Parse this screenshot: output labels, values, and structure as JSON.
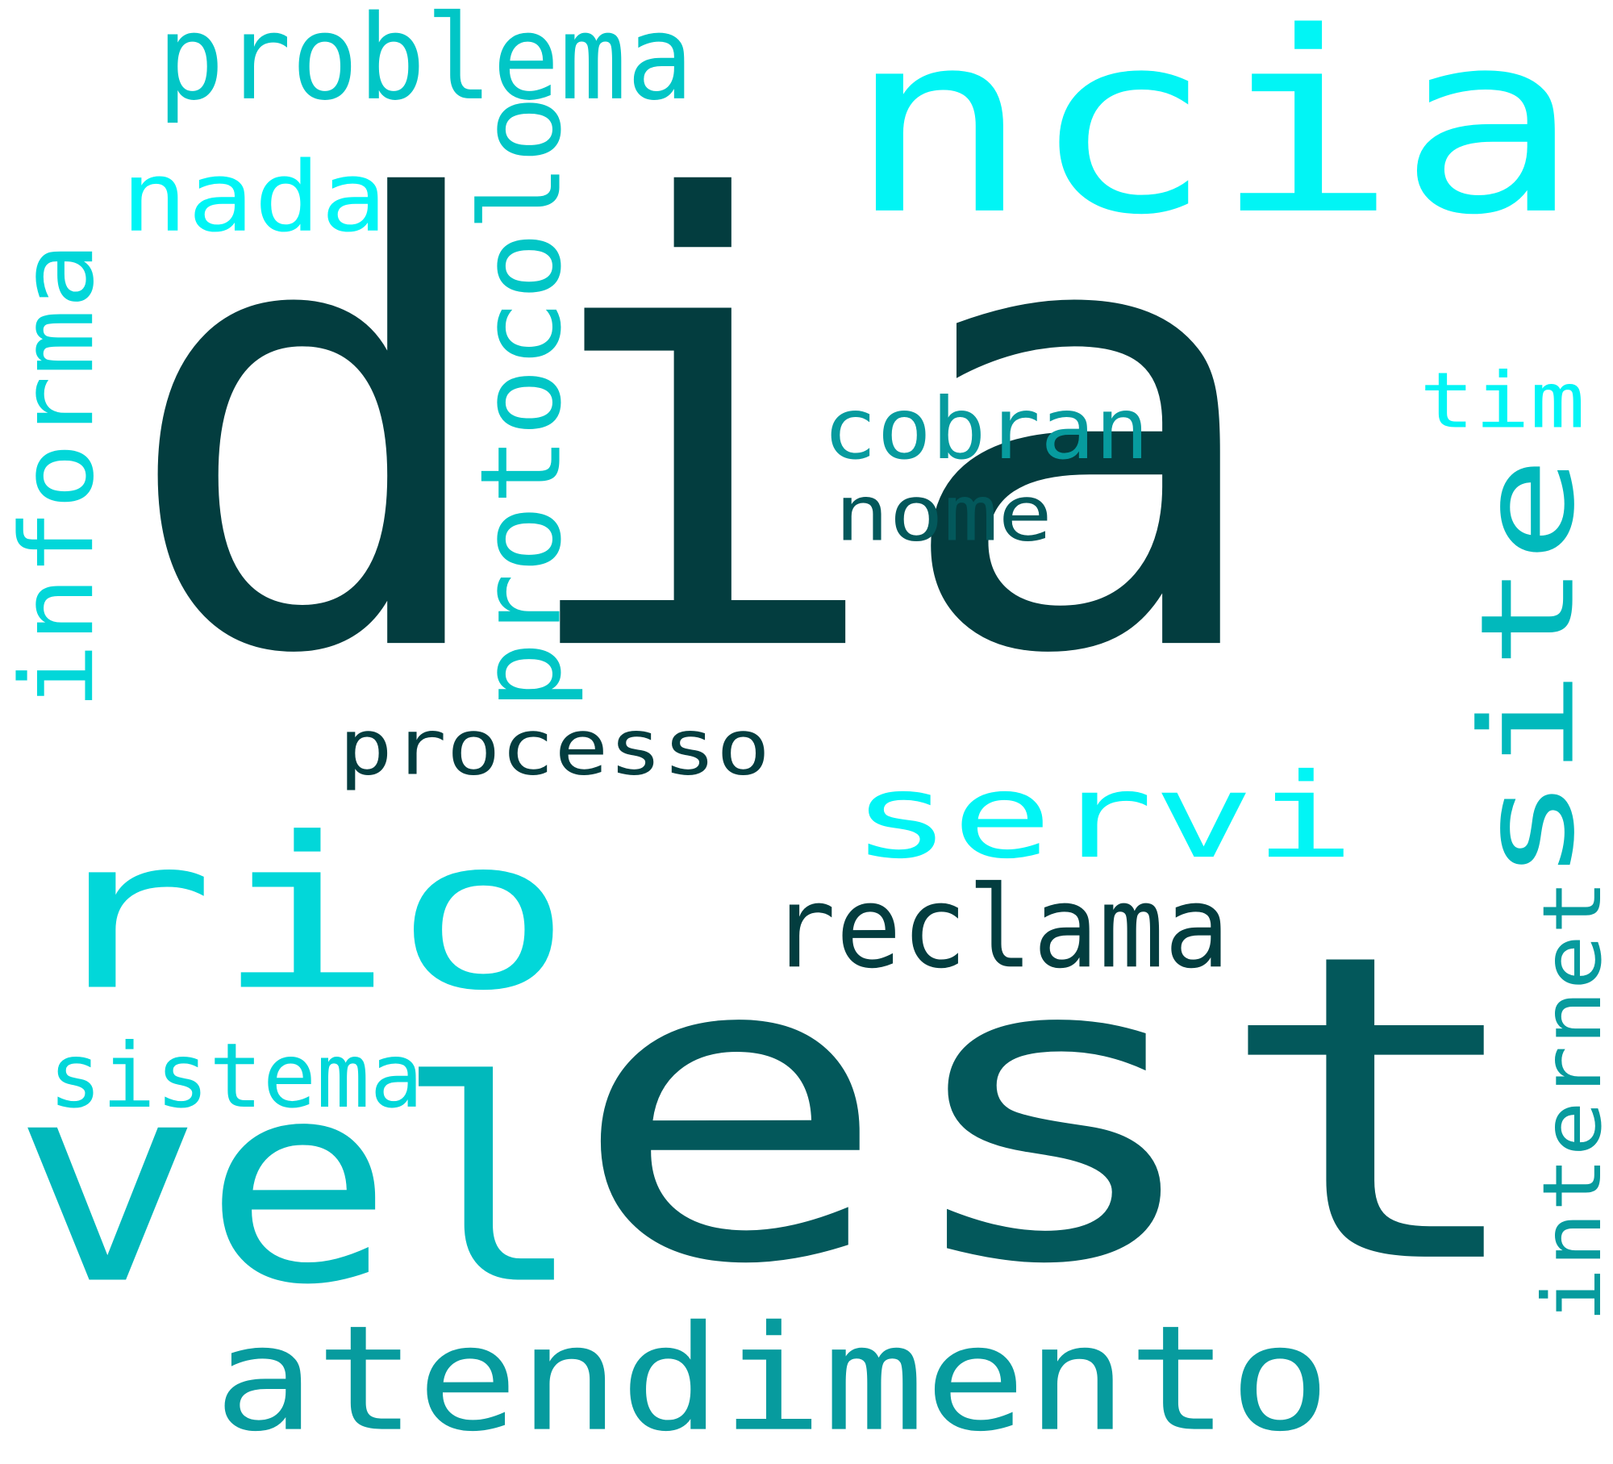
{
  "colors": {
    "background": "#ffffff",
    "darkest_teal": "#033d3f",
    "dark_teal": "#03585b",
    "teal": "#079b9e",
    "medium_teal": "#01b9bc",
    "turquoise": "#02d7d9",
    "cyan": "#01f5f5"
  },
  "words": [
    {
      "id": "w-dia",
      "text": "dia",
      "color": "#033d3f",
      "orientation": "horizontal"
    },
    {
      "id": "w-est",
      "text": "est",
      "color": "#03585b",
      "orientation": "horizontal"
    },
    {
      "id": "w-ncia",
      "text": "ncia",
      "color": "#01f5f5",
      "orientation": "horizontal"
    },
    {
      "id": "w-rio",
      "text": "rio",
      "color": "#02d7d9",
      "orientation": "horizontal"
    },
    {
      "id": "w-vel",
      "text": "vel",
      "color": "#01b9bc",
      "orientation": "horizontal"
    },
    {
      "id": "w-atendimento",
      "text": "atendimento",
      "color": "#079b9e",
      "orientation": "horizontal"
    },
    {
      "id": "w-site",
      "text": "site",
      "color": "#01b9bc",
      "orientation": "vertical"
    },
    {
      "id": "w-servi",
      "text": "servi",
      "color": "#01f5f5",
      "orientation": "horizontal"
    },
    {
      "id": "w-protocolo",
      "text": "protocolo",
      "color": "#01c6c6",
      "orientation": "vertical"
    },
    {
      "id": "w-informa",
      "text": "informa",
      "color": "#02d7d9",
      "orientation": "vertical"
    },
    {
      "id": "w-reclama",
      "text": "reclama",
      "color": "#033d3f",
      "orientation": "horizontal"
    },
    {
      "id": "w-problema",
      "text": "problema",
      "color": "#01c6c6",
      "orientation": "horizontal"
    },
    {
      "id": "w-internet",
      "text": "internet",
      "color": "#079b9e",
      "orientation": "vertical"
    },
    {
      "id": "w-nada",
      "text": "nada",
      "color": "#01f5f5",
      "orientation": "horizontal"
    },
    {
      "id": "w-processo",
      "text": "processo",
      "color": "#033d3f",
      "orientation": "horizontal"
    },
    {
      "id": "w-cobran",
      "text": "cobran",
      "color": "#079b9e",
      "orientation": "horizontal"
    },
    {
      "id": "w-nome",
      "text": "nome",
      "color": "#03585b",
      "orientation": "horizontal"
    },
    {
      "id": "w-sistema",
      "text": "sistema",
      "color": "#02d7d9",
      "orientation": "horizontal"
    },
    {
      "id": "w-tim",
      "text": "tim",
      "color": "#01f5f5",
      "orientation": "horizontal"
    }
  ]
}
